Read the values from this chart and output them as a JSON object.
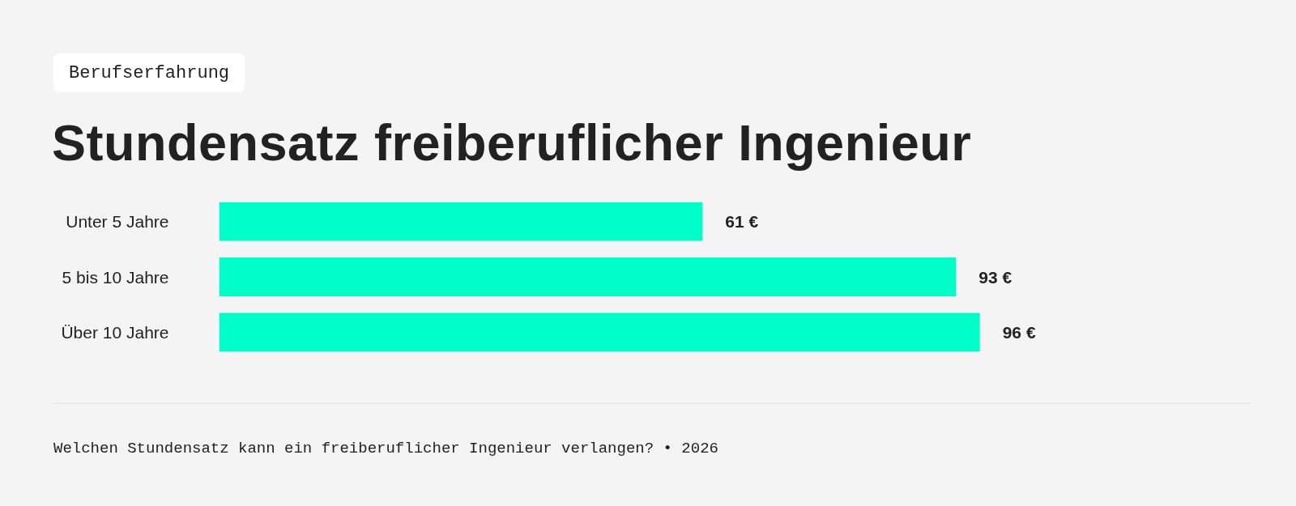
{
  "chart_data": {
    "type": "bar",
    "orientation": "horizontal",
    "subtitle": "Berufserfahrung",
    "title": "Stundensatz freiberuflicher Ingenieur",
    "categories": [
      "Unter 5 Jahre",
      "5 bis 10 Jahre",
      "Über 10 Jahre"
    ],
    "values": [
      61,
      93,
      96
    ],
    "value_labels": [
      "61 €",
      "93 €",
      "96 €"
    ],
    "color": "#00ffc8",
    "annotations": [
      "Welchen Stundensatz kann ein freiberuflicher Ingenieur verlangen? • 2026"
    ]
  }
}
